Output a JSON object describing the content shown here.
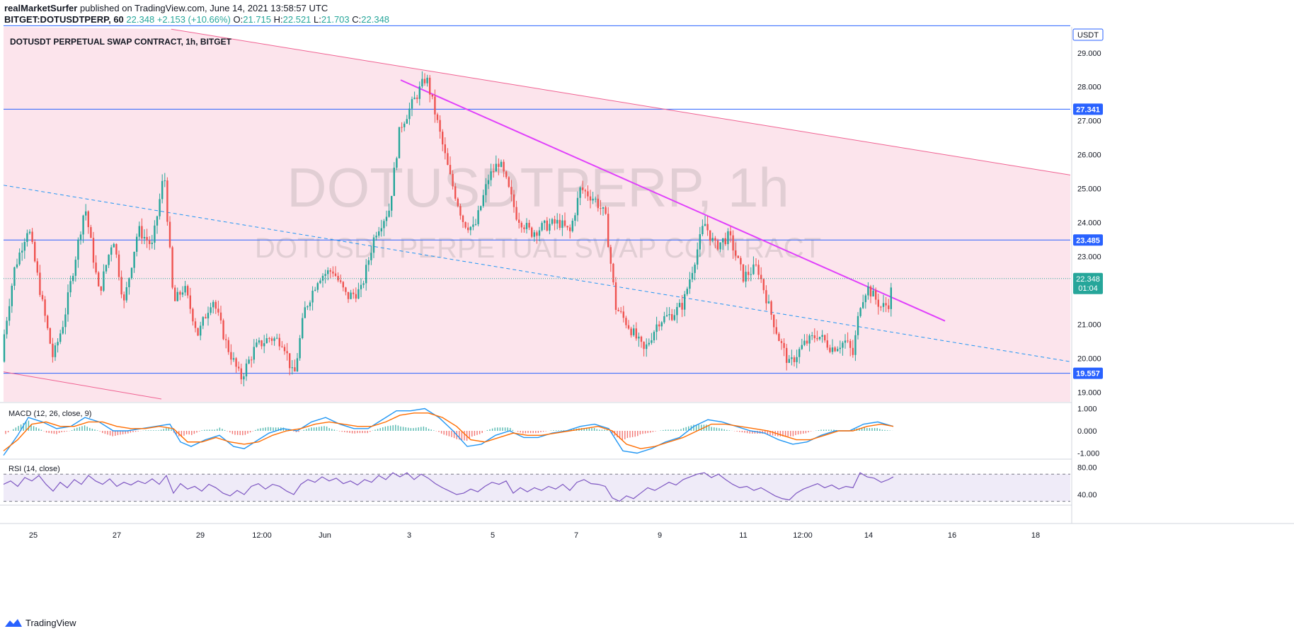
{
  "header": {
    "line1_prefix": "realMarketSurfer",
    "line1_suffix": "published on TradingView.com, June 14, 2021 13:58:57 UTC",
    "symbol": "BITGET:DOTUSDTPERP, 60",
    "last": "22.348",
    "change": "+2.153 (+10.66%)",
    "o_label": "O:",
    "o": "21.715",
    "h_label": "H:",
    "h": "22.521",
    "l_label": "L:",
    "l": "21.703",
    "c_label": "C:",
    "c": "22.348"
  },
  "chart_title": "DOTUSDT PERPETUAL SWAP CONTRACT, 1h, BITGET",
  "watermark": {
    "big": "DOTUSDTPERP, 1h",
    "small": "DOTUSDT PERPETUAL SWAP CONTRACT"
  },
  "currency_label": "USDT",
  "footer": {
    "brand": "TradingView"
  },
  "colors": {
    "up": "#26a69a",
    "down": "#ef5350",
    "trend": "#e040fb",
    "hline": "#2962ff",
    "channel_fill": "#fce4ec",
    "macd": "#2196f3",
    "signal": "#ff6d00",
    "rsi": "#7e57c2"
  },
  "chart_data": [
    {
      "type": "candlestick",
      "price_ticks": [
        "29.000",
        "28.000",
        "27.000",
        "26.000",
        "25.000",
        "24.000",
        "23.000",
        "22.000",
        "21.000",
        "20.000",
        "19.000"
      ],
      "x_ticks": [
        "25",
        "27",
        "29",
        "12:00",
        "Jun",
        "3",
        "5",
        "7",
        "9",
        "11",
        "12:00",
        "14",
        "16",
        "18"
      ],
      "ylim": [
        18.8,
        29.85
      ],
      "horizontal_levels": [
        {
          "value": 29.8,
          "label": ""
        },
        {
          "value": 27.341,
          "label": "27.341"
        },
        {
          "value": 23.485,
          "label": "23.485"
        },
        {
          "value": 19.557,
          "label": "19.557"
        }
      ],
      "last_price": {
        "value": 22.348,
        "label": "22.348",
        "countdown": "01:04"
      },
      "close_path": [
        [
          0,
          19.9
        ],
        [
          20,
          22.6
        ],
        [
          40,
          23.9
        ],
        [
          60,
          21.6
        ],
        [
          75,
          20.0
        ],
        [
          90,
          21.1
        ],
        [
          105,
          22.8
        ],
        [
          120,
          24.5
        ],
        [
          140,
          21.9
        ],
        [
          160,
          23.6
        ],
        [
          175,
          21.6
        ],
        [
          195,
          23.8
        ],
        [
          215,
          23.3
        ],
        [
          232,
          25.5
        ],
        [
          245,
          21.6
        ],
        [
          260,
          22.1
        ],
        [
          280,
          20.7
        ],
        [
          300,
          21.8
        ],
        [
          320,
          20.4
        ],
        [
          340,
          19.4
        ],
        [
          360,
          20.3
        ],
        [
          380,
          20.6
        ],
        [
          400,
          20.5
        ],
        [
          415,
          19.4
        ],
        [
          430,
          21.4
        ],
        [
          450,
          22.4
        ],
        [
          470,
          22.6
        ],
        [
          490,
          21.8
        ],
        [
          510,
          22.0
        ],
        [
          530,
          23.7
        ],
        [
          550,
          24.4
        ],
        [
          565,
          26.8
        ],
        [
          585,
          27.6
        ],
        [
          602,
          28.3
        ],
        [
          615,
          27.2
        ],
        [
          635,
          25.4
        ],
        [
          655,
          24.0
        ],
        [
          670,
          23.8
        ],
        [
          690,
          25.3
        ],
        [
          705,
          25.8
        ],
        [
          715,
          25.2
        ],
        [
          730,
          24.2
        ],
        [
          750,
          23.7
        ],
        [
          770,
          23.9
        ],
        [
          790,
          24.0
        ],
        [
          805,
          23.7
        ],
        [
          820,
          25.0
        ],
        [
          840,
          24.7
        ],
        [
          855,
          24.2
        ],
        [
          870,
          21.5
        ],
        [
          890,
          20.9
        ],
        [
          910,
          20.2
        ],
        [
          930,
          21.1
        ],
        [
          950,
          21.3
        ],
        [
          965,
          21.6
        ],
        [
          975,
          22.4
        ],
        [
          995,
          24.0
        ],
        [
          1010,
          23.3
        ],
        [
          1030,
          23.6
        ],
        [
          1050,
          22.4
        ],
        [
          1070,
          22.7
        ],
        [
          1085,
          21.6
        ],
        [
          1100,
          20.6
        ],
        [
          1115,
          19.8
        ],
        [
          1135,
          20.4
        ],
        [
          1155,
          20.7
        ],
        [
          1175,
          20.3
        ],
        [
          1195,
          20.5
        ],
        [
          1205,
          20.1
        ],
        [
          1215,
          21.6
        ],
        [
          1225,
          22.1
        ],
        [
          1245,
          21.5
        ],
        [
          1255,
          21.6
        ],
        [
          1262,
          22.3
        ]
      ],
      "trendlines": [
        {
          "style": "solid-magenta",
          "from": [
            566,
            28.2
          ],
          "to": [
            1335,
            21.1
          ]
        },
        {
          "style": "dashed-blue",
          "from": [
            5,
            25.1
          ],
          "to": [
            1512,
            19.9
          ]
        },
        {
          "style": "channel-upper",
          "from": [
            242,
            29.7
          ],
          "to": [
            1512,
            25.4
          ]
        },
        {
          "style": "channel-lower",
          "from": [
            5,
            19.6
          ],
          "to": [
            228,
            18.8
          ]
        }
      ]
    },
    {
      "type": "line",
      "name": "MACD (12, 26, close, 9)",
      "ticks": [
        "1.000",
        "0.000",
        "-1.000"
      ],
      "ylim": [
        -1.3,
        1.3
      ],
      "macd_path": [
        [
          5,
          -1.1
        ],
        [
          25,
          -0.2
        ],
        [
          40,
          0.6
        ],
        [
          60,
          0.4
        ],
        [
          80,
          0.1
        ],
        [
          100,
          0.2
        ],
        [
          120,
          0.6
        ],
        [
          140,
          0.4
        ],
        [
          160,
          0.0
        ],
        [
          180,
          0.0
        ],
        [
          200,
          0.1
        ],
        [
          220,
          0.2
        ],
        [
          240,
          0.3
        ],
        [
          255,
          -0.5
        ],
        [
          270,
          -0.7
        ],
        [
          290,
          -0.4
        ],
        [
          310,
          -0.2
        ],
        [
          330,
          -0.7
        ],
        [
          345,
          -0.8
        ],
        [
          360,
          -0.5
        ],
        [
          380,
          -0.1
        ],
        [
          400,
          0.1
        ],
        [
          420,
          0.0
        ],
        [
          440,
          0.4
        ],
        [
          460,
          0.6
        ],
        [
          480,
          0.3
        ],
        [
          500,
          0.1
        ],
        [
          520,
          0.1
        ],
        [
          540,
          0.5
        ],
        [
          560,
          0.9
        ],
        [
          580,
          0.9
        ],
        [
          600,
          1.0
        ],
        [
          620,
          0.6
        ],
        [
          640,
          0.0
        ],
        [
          660,
          -0.7
        ],
        [
          680,
          -0.6
        ],
        [
          700,
          -0.2
        ],
        [
          720,
          0.0
        ],
        [
          740,
          -0.3
        ],
        [
          760,
          -0.3
        ],
        [
          780,
          -0.1
        ],
        [
          800,
          0.0
        ],
        [
          820,
          0.2
        ],
        [
          840,
          0.3
        ],
        [
          860,
          0.1
        ],
        [
          880,
          -0.9
        ],
        [
          900,
          -1.0
        ],
        [
          920,
          -0.8
        ],
        [
          940,
          -0.5
        ],
        [
          960,
          -0.3
        ],
        [
          980,
          0.2
        ],
        [
          1000,
          0.5
        ],
        [
          1020,
          0.4
        ],
        [
          1040,
          0.2
        ],
        [
          1060,
          0.0
        ],
        [
          1080,
          -0.1
        ],
        [
          1100,
          -0.4
        ],
        [
          1120,
          -0.6
        ],
        [
          1140,
          -0.5
        ],
        [
          1160,
          -0.2
        ],
        [
          1180,
          0.0
        ],
        [
          1200,
          0.0
        ],
        [
          1220,
          0.3
        ],
        [
          1240,
          0.4
        ],
        [
          1262,
          0.2
        ]
      ],
      "signal_path": [
        [
          5,
          -0.9
        ],
        [
          25,
          -0.4
        ],
        [
          45,
          0.3
        ],
        [
          65,
          0.4
        ],
        [
          85,
          0.2
        ],
        [
          105,
          0.2
        ],
        [
          125,
          0.4
        ],
        [
          145,
          0.4
        ],
        [
          165,
          0.2
        ],
        [
          185,
          0.1
        ],
        [
          205,
          0.1
        ],
        [
          225,
          0.2
        ],
        [
          245,
          0.1
        ],
        [
          265,
          -0.5
        ],
        [
          285,
          -0.5
        ],
        [
          305,
          -0.3
        ],
        [
          325,
          -0.5
        ],
        [
          345,
          -0.6
        ],
        [
          365,
          -0.5
        ],
        [
          385,
          -0.2
        ],
        [
          405,
          0.0
        ],
        [
          425,
          0.1
        ],
        [
          445,
          0.3
        ],
        [
          465,
          0.4
        ],
        [
          485,
          0.3
        ],
        [
          505,
          0.2
        ],
        [
          525,
          0.2
        ],
        [
          545,
          0.4
        ],
        [
          565,
          0.7
        ],
        [
          585,
          0.8
        ],
        [
          605,
          0.8
        ],
        [
          625,
          0.6
        ],
        [
          645,
          0.2
        ],
        [
          665,
          -0.4
        ],
        [
          685,
          -0.5
        ],
        [
          705,
          -0.3
        ],
        [
          725,
          -0.1
        ],
        [
          745,
          -0.2
        ],
        [
          765,
          -0.2
        ],
        [
          785,
          -0.1
        ],
        [
          805,
          0.0
        ],
        [
          825,
          0.1
        ],
        [
          845,
          0.2
        ],
        [
          865,
          0.0
        ],
        [
          885,
          -0.6
        ],
        [
          905,
          -0.8
        ],
        [
          925,
          -0.7
        ],
        [
          945,
          -0.5
        ],
        [
          965,
          -0.3
        ],
        [
          985,
          0.0
        ],
        [
          1005,
          0.3
        ],
        [
          1025,
          0.3
        ],
        [
          1045,
          0.2
        ],
        [
          1065,
          0.1
        ],
        [
          1085,
          0.0
        ],
        [
          1105,
          -0.2
        ],
        [
          1125,
          -0.4
        ],
        [
          1145,
          -0.4
        ],
        [
          1165,
          -0.2
        ],
        [
          1185,
          0.0
        ],
        [
          1205,
          0.0
        ],
        [
          1225,
          0.2
        ],
        [
          1245,
          0.3
        ],
        [
          1262,
          0.2
        ]
      ]
    },
    {
      "type": "line",
      "name": "RSI (14, close)",
      "ticks": [
        "80.00",
        "40.00"
      ],
      "ylim": [
        25,
        90
      ],
      "band": [
        30,
        70
      ],
      "rsi_path": [
        [
          5,
          55
        ],
        [
          15,
          60
        ],
        [
          25,
          52
        ],
        [
          35,
          65
        ],
        [
          45,
          60
        ],
        [
          55,
          68
        ],
        [
          65,
          55
        ],
        [
          75,
          45
        ],
        [
          85,
          58
        ],
        [
          95,
          50
        ],
        [
          105,
          62
        ],
        [
          115,
          55
        ],
        [
          125,
          68
        ],
        [
          135,
          60
        ],
        [
          145,
          55
        ],
        [
          155,
          63
        ],
        [
          165,
          52
        ],
        [
          175,
          58
        ],
        [
          185,
          54
        ],
        [
          195,
          60
        ],
        [
          205,
          56
        ],
        [
          215,
          63
        ],
        [
          225,
          55
        ],
        [
          235,
          68
        ],
        [
          245,
          42
        ],
        [
          255,
          56
        ],
        [
          265,
          48
        ],
        [
          275,
          52
        ],
        [
          285,
          45
        ],
        [
          295,
          55
        ],
        [
          305,
          50
        ],
        [
          315,
          42
        ],
        [
          325,
          38
        ],
        [
          335,
          46
        ],
        [
          345,
          40
        ],
        [
          355,
          52
        ],
        [
          365,
          56
        ],
        [
          375,
          48
        ],
        [
          385,
          55
        ],
        [
          395,
          52
        ],
        [
          405,
          45
        ],
        [
          415,
          40
        ],
        [
          425,
          55
        ],
        [
          435,
          62
        ],
        [
          445,
          58
        ],
        [
          455,
          66
        ],
        [
          465,
          60
        ],
        [
          475,
          64
        ],
        [
          485,
          56
        ],
        [
          495,
          60
        ],
        [
          505,
          54
        ],
        [
          515,
          62
        ],
        [
          525,
          58
        ],
        [
          535,
          68
        ],
        [
          545,
          62
        ],
        [
          555,
          72
        ],
        [
          565,
          66
        ],
        [
          575,
          72
        ],
        [
          585,
          62
        ],
        [
          595,
          70
        ],
        [
          605,
          64
        ],
        [
          615,
          56
        ],
        [
          625,
          50
        ],
        [
          635,
          45
        ],
        [
          645,
          40
        ],
        [
          655,
          42
        ],
        [
          665,
          48
        ],
        [
          675,
          44
        ],
        [
          685,
          52
        ],
        [
          695,
          58
        ],
        [
          705,
          55
        ],
        [
          715,
          60
        ],
        [
          725,
          42
        ],
        [
          735,
          50
        ],
        [
          745,
          44
        ],
        [
          755,
          50
        ],
        [
          765,
          46
        ],
        [
          775,
          52
        ],
        [
          785,
          48
        ],
        [
          795,
          55
        ],
        [
          805,
          46
        ],
        [
          815,
          58
        ],
        [
          825,
          62
        ],
        [
          835,
          56
        ],
        [
          845,
          55
        ],
        [
          855,
          52
        ],
        [
          865,
          35
        ],
        [
          875,
          30
        ],
        [
          885,
          38
        ],
        [
          895,
          34
        ],
        [
          905,
          42
        ],
        [
          915,
          50
        ],
        [
          925,
          46
        ],
        [
          935,
          52
        ],
        [
          945,
          58
        ],
        [
          955,
          54
        ],
        [
          965,
          62
        ],
        [
          975,
          66
        ],
        [
          985,
          70
        ],
        [
          995,
          72
        ],
        [
          1005,
          65
        ],
        [
          1015,
          70
        ],
        [
          1025,
          62
        ],
        [
          1035,
          55
        ],
        [
          1045,
          50
        ],
        [
          1055,
          52
        ],
        [
          1065,
          46
        ],
        [
          1075,
          50
        ],
        [
          1085,
          44
        ],
        [
          1095,
          38
        ],
        [
          1105,
          34
        ],
        [
          1115,
          32
        ],
        [
          1125,
          42
        ],
        [
          1135,
          48
        ],
        [
          1145,
          52
        ],
        [
          1155,
          56
        ],
        [
          1165,
          50
        ],
        [
          1175,
          54
        ],
        [
          1185,
          48
        ],
        [
          1195,
          52
        ],
        [
          1205,
          50
        ],
        [
          1215,
          72
        ],
        [
          1225,
          66
        ],
        [
          1235,
          64
        ],
        [
          1245,
          58
        ],
        [
          1255,
          62
        ],
        [
          1262,
          66
        ]
      ]
    }
  ]
}
